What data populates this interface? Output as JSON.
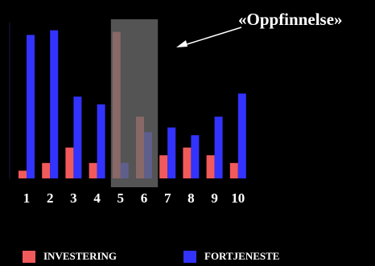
{
  "chart_data": {
    "type": "bar",
    "title": "",
    "xlabel": "",
    "ylabel": "",
    "categories": [
      "1",
      "2",
      "3",
      "4",
      "5",
      "6",
      "7",
      "8",
      "9",
      "10"
    ],
    "series": [
      {
        "name": "INVESTERING",
        "color": "#f15a5a",
        "values": [
          5,
          10,
          20,
          10,
          95,
          40,
          15,
          20,
          15,
          10
        ]
      },
      {
        "name": "FORTJENESTE",
        "color": "#3333ff",
        "values": [
          93,
          96,
          53,
          48,
          10,
          30,
          33,
          28,
          40,
          55
        ]
      }
    ],
    "ylim": [
      0,
      100
    ],
    "grid": false,
    "legend_position": "bottom",
    "highlight": {
      "categories": [
        "5",
        "6"
      ],
      "label": "«Oppfinnelse»",
      "color": "#6b6b6b"
    }
  }
}
